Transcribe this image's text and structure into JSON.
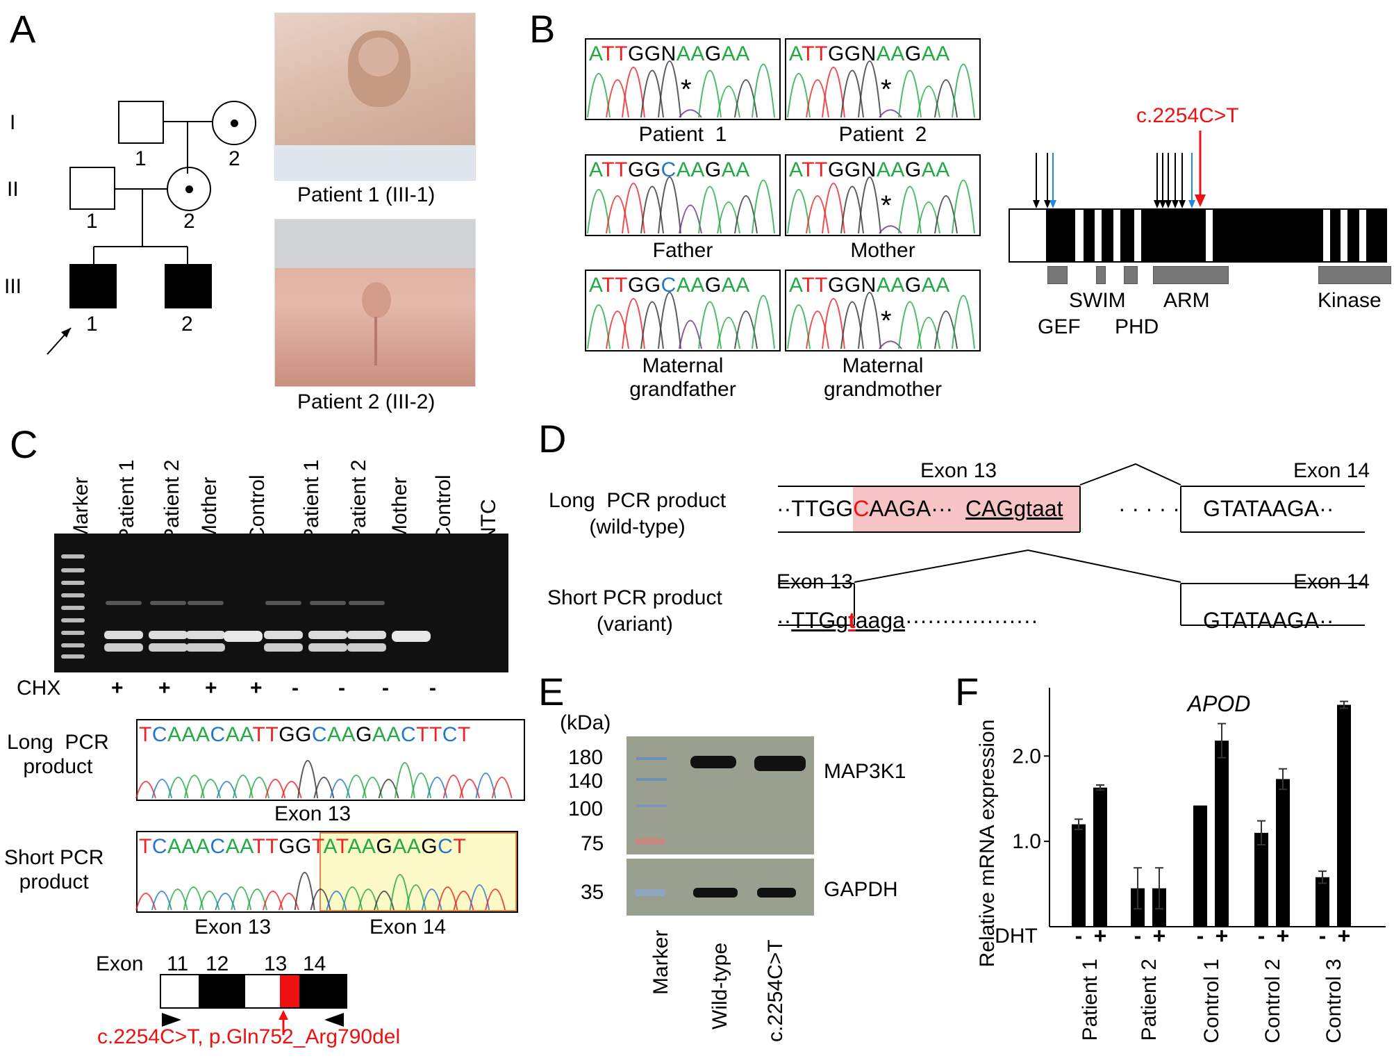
{
  "panels": {
    "a": "A",
    "b": "B",
    "c": "C",
    "d": "D",
    "e": "E",
    "f": "F"
  },
  "panel_a": {
    "generations": [
      "I",
      "II",
      "III"
    ],
    "gen1": [
      "1",
      "2"
    ],
    "gen2": [
      "1",
      "2"
    ],
    "gen3": [
      "1",
      "2"
    ],
    "photo1_caption": "Patient  1 (III-1)",
    "photo2_caption": "Patient  2 (III-2)"
  },
  "panel_b": {
    "chromatograms": [
      {
        "seq": "ATTGGNAAGAA",
        "label": "Patient  1",
        "star": true
      },
      {
        "seq": "ATTGGNAAGAA",
        "label": "Patient  2",
        "star": true
      },
      {
        "seq": "ATTGGCAAGAA",
        "label": "Father",
        "star": false
      },
      {
        "seq": "ATTGGNAAGAA",
        "label": "Mother",
        "star": true
      },
      {
        "seq": "ATTGGCAAGAA",
        "label": "Maternal\ngrandfather",
        "star": false
      },
      {
        "seq": "ATTGGNAAGAA",
        "label": "Maternal\ngrandmother",
        "star": true
      }
    ],
    "variant_label": "c.2254C>T",
    "domains": {
      "gef": "GEF",
      "swim": "SWIM",
      "phd": "PHD",
      "arm": "ARM",
      "kinase": "Kinase"
    },
    "star": "*"
  },
  "panel_c": {
    "lanes": [
      "Marker",
      "Patient  1",
      "Patient  2",
      "Mother",
      "Control",
      "Patient  1",
      "Patient  2",
      "Mother",
      "Control",
      "NTC"
    ],
    "chx_label": "CHX",
    "chx": [
      "+",
      "+",
      "+",
      "+",
      "-",
      "-",
      "-",
      "-"
    ],
    "long_label": "Long  PCR\nproduct",
    "long_seq": "TCAAACAATTGGCAAGAACTTCT",
    "long_exon": "Exon 13",
    "short_label": "Short PCR\nproduct",
    "short_seq": "TCAAACAATTGGTATAAGAAGCT",
    "short_exon13": "Exon 13",
    "short_exon14": "Exon 14",
    "exon_word": "Exon",
    "exons": [
      "11",
      "12",
      "13",
      "14"
    ],
    "variant_text": "c.2254C>T,  p.Gln752_Arg790del"
  },
  "panel_d": {
    "long_label": "Long  PCR product\n(wild-type)",
    "short_label": "Short PCR product\n(variant)",
    "exon13": "Exon 13",
    "exon14": "Exon 14",
    "long_seq_a": "··TTGG",
    "long_seq_b": "C",
    "long_seq_c": "AAGA···",
    "long_seq_d": "CAG",
    "long_seq_e": "gtaat",
    "dots": "· · · · ·",
    "exon14_seq": "GTATAAGA··",
    "short_seq_a": "··",
    "short_seq_b": "TTG",
    "short_seq_c": "g",
    "short_seq_d": "t",
    "short_seq_e": "aaga",
    "short_dots": "··················"
  },
  "panel_e": {
    "unit": "(kDa)",
    "markers": [
      "180",
      "140",
      "100",
      "75"
    ],
    "gapdh_marker": "35",
    "band1": "MAP3K1",
    "band2": "GAPDH",
    "lanes": [
      "Marker",
      "Wild-type",
      "c.2254C>T"
    ]
  },
  "colors": {
    "red": "#ee1111",
    "A": "#22aa44",
    "T": "#ee2222",
    "G": "#000000",
    "C": "#2277cc",
    "highlight_red": "#f6c4c4",
    "highlight_yellow": "#fdfac8"
  },
  "chart_data": {
    "type": "bar",
    "title": "APOD",
    "ylabel": "Relative mRNA expression",
    "xlabel": "DHT",
    "ylim": [
      0,
      2.8
    ],
    "yticks": [
      "1.0",
      "2.0"
    ],
    "categories": [
      "Patient  1",
      "Patient  2",
      "Control 1",
      "Control 2",
      "Control 3"
    ],
    "conditions": [
      "-",
      "+"
    ],
    "values": [
      [
        1.2,
        1.63
      ],
      [
        0.45,
        0.45
      ],
      [
        1.42,
        2.18
      ],
      [
        1.1,
        1.73
      ],
      [
        0.58,
        2.6
      ]
    ],
    "errors": [
      [
        0.06,
        0.03
      ],
      [
        0.24,
        0.24
      ],
      [
        0.0,
        0.2
      ],
      [
        0.14,
        0.12
      ],
      [
        0.07,
        0.04
      ]
    ]
  }
}
